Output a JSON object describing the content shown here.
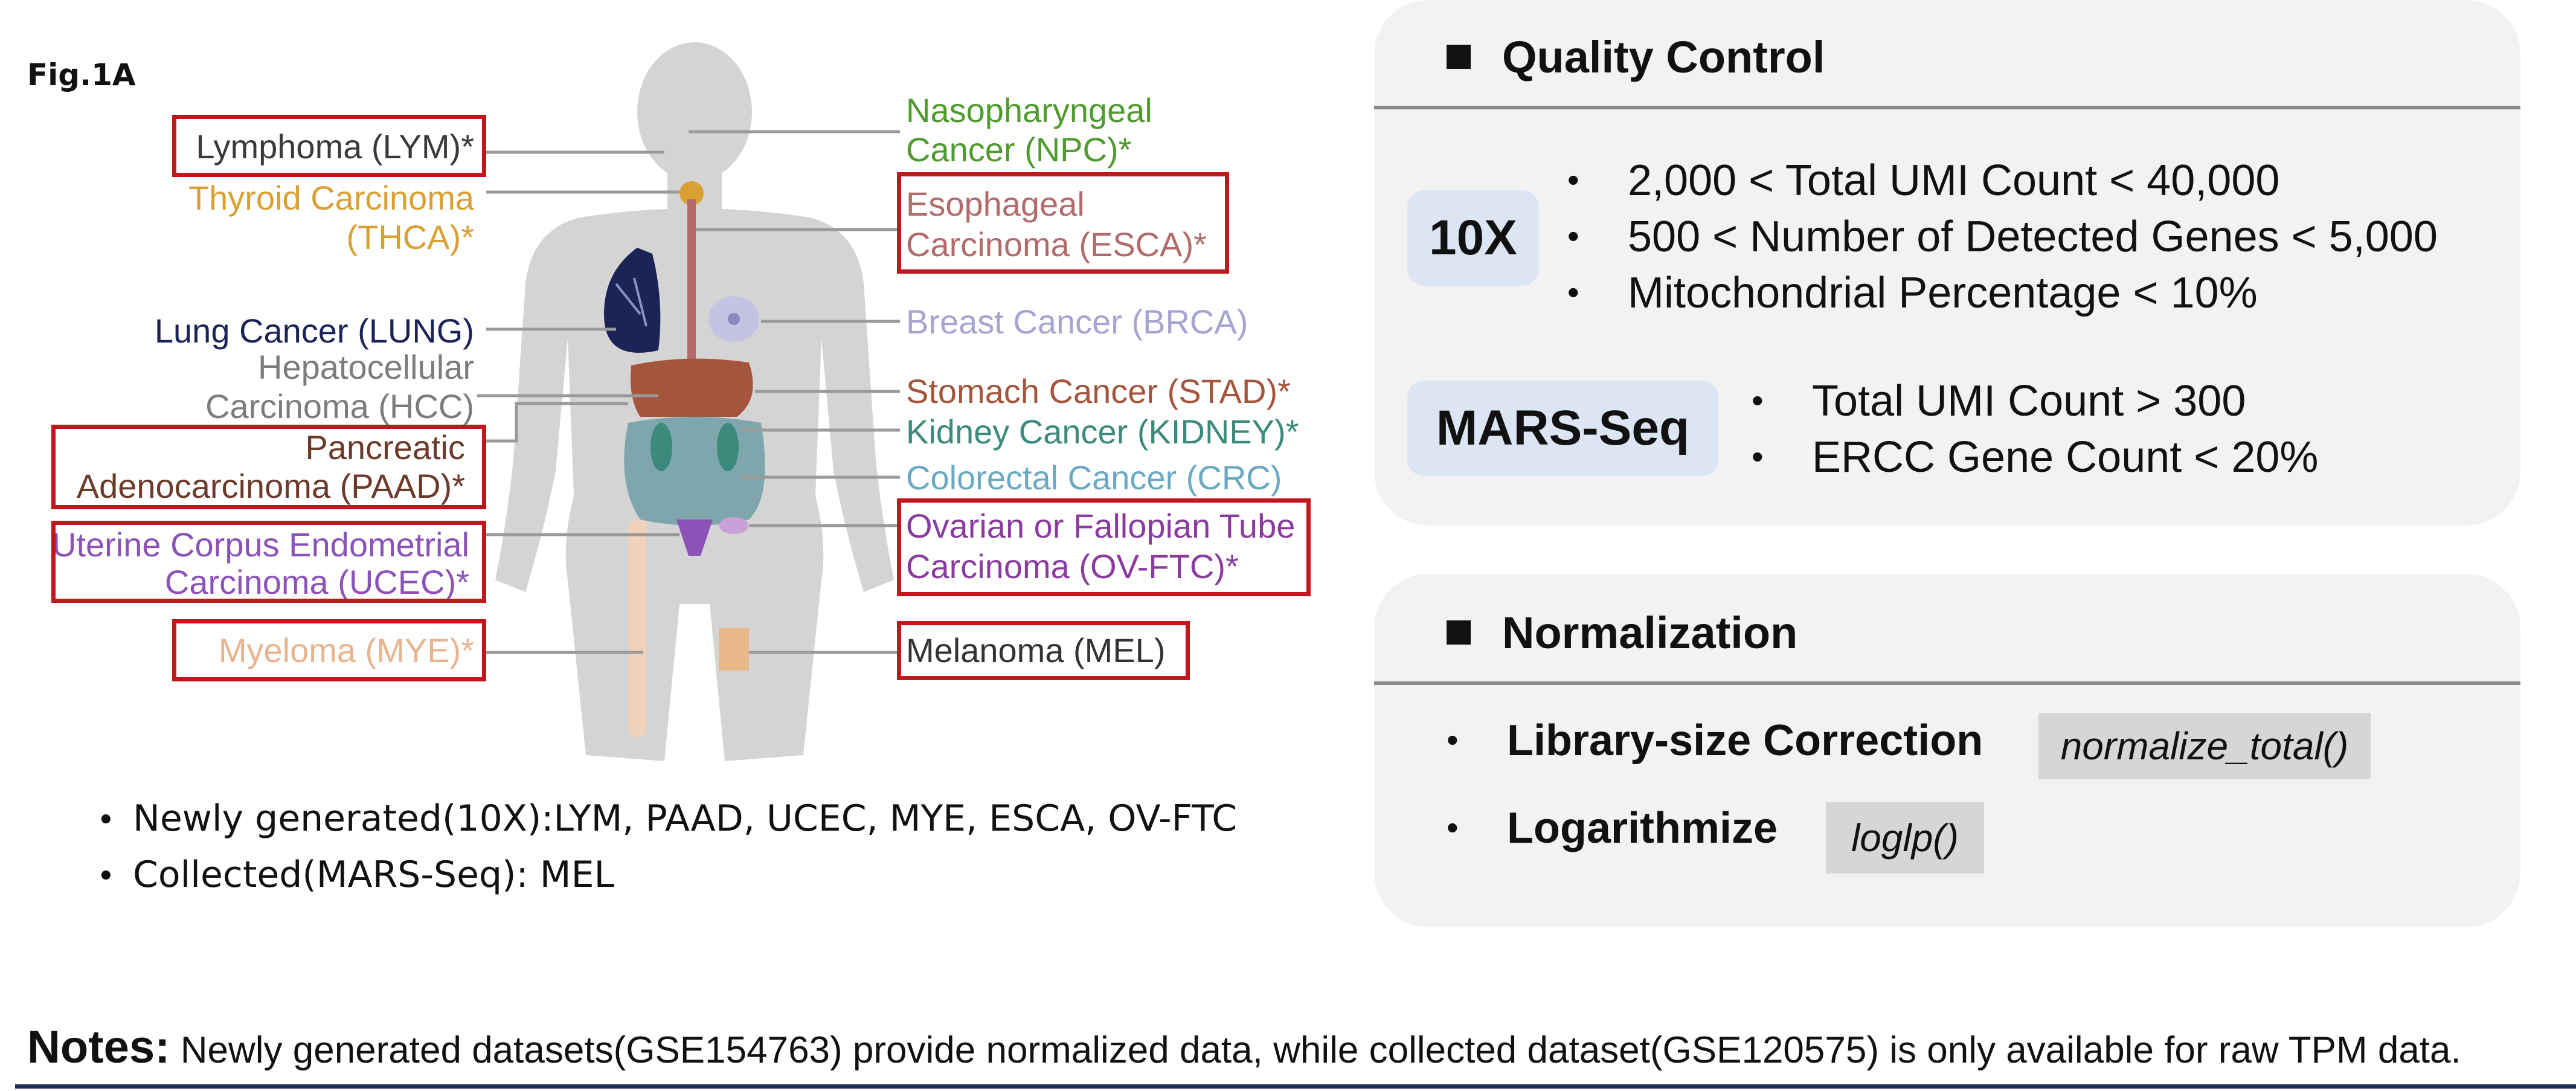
{
  "figure_label": "Fig.1A",
  "cancer_labels": {
    "lym": "Lymphoma (LYM)*",
    "thca_1": "Thyroid Carcinoma",
    "thca_2": "(THCA)*",
    "lung": "Lung Cancer (LUNG)",
    "hcc_1": "Hepatocellular",
    "hcc_2": "Carcinoma (HCC)",
    "paad_1": "Pancreatic",
    "paad_2": "Adenocarcinoma (PAAD)*",
    "ucec_1": "Uterine Corpus Endometrial",
    "ucec_2": "Carcinoma (UCEC)*",
    "mye": "Myeloma (MYE)*",
    "npc_1": "Nasopharyngeal",
    "npc_2": "Cancer (NPC)*",
    "esca_1": "Esophageal",
    "esca_2": "Carcinoma (ESCA)*",
    "brca": "Breast Cancer (BRCA)",
    "stad": "Stomach Cancer (STAD)*",
    "kidney": "Kidney Cancer (KIDNEY)*",
    "crc": "Colorectal Cancer (CRC)",
    "ovftc_1": "Ovarian or Fallopian Tube",
    "ovftc_2": "Carcinoma (OV-FTC)*",
    "mel": "Melanoma (MEL)"
  },
  "colors": {
    "lym": "#3a3a3a",
    "thca": "#d9a034",
    "lung": "#1b2456",
    "hcc": "#7c7c7c",
    "paad": "#6b3a2a",
    "ucec": "#8b52b8",
    "mye": "#e7b48f",
    "npc": "#4f9b2f",
    "esca": "#b26a6a",
    "brca": "#a6a5d0",
    "stad": "#a4553c",
    "kidney": "#3b8a7c",
    "crc": "#6aa9c4",
    "ovftc": "#8b3ba0",
    "mel": "#333333",
    "highlight_box": "#c0161c"
  },
  "legend": [
    "Newly generated(10X):LYM, PAAD, UCEC, MYE, ESCA, OV-FTC",
    "Collected(MARS-Seq): MEL"
  ],
  "qc": {
    "title": "Quality Control",
    "tenx": {
      "tag": "10X",
      "criteria": [
        "2,000 < Total UMI Count < 40,000",
        "500 < Number of Detected Genes < 5,000",
        "Mitochondrial Percentage < 10%"
      ]
    },
    "mars": {
      "tag": "MARS-Seq",
      "criteria": [
        "Total UMI Count > 300",
        "ERCC Gene Count < 20%"
      ]
    }
  },
  "normalization": {
    "title": "Normalization",
    "steps": [
      {
        "label": "Library-size Correction",
        "code": "normalize_total()"
      },
      {
        "label": "Logarithmize",
        "code": "loglp()"
      }
    ]
  },
  "notes": {
    "label": "Notes:",
    "text": " Newly generated datasets(GSE154763) provide normalized data, while collected dataset(GSE120575) is only available for raw TPM data."
  }
}
